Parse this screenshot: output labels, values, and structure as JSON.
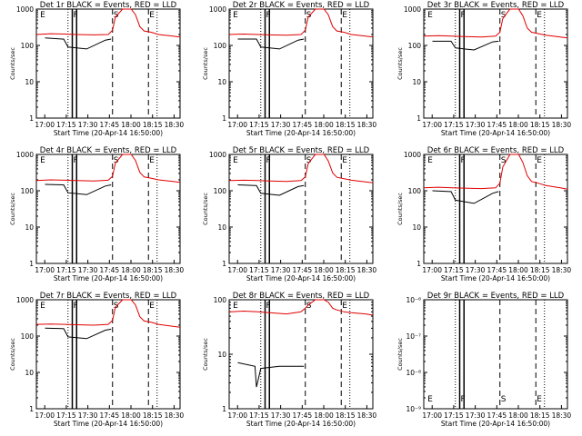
{
  "figure": {
    "xlabel_prefix": "Start Time (20-Apr-14 16:50:00)",
    "ylabel": "Counts/sec",
    "x_ticks": [
      "17:00",
      "17:15",
      "17:30",
      "17:45",
      "18:00",
      "18:15",
      "18:30"
    ],
    "colors": {
      "events": "#000000",
      "lld": "#e00000"
    }
  },
  "chart_data": [
    {
      "type": "line",
      "title": "Det 1r BLACK = Events, RED = LLD",
      "yscale": "log",
      "ylim": [
        1,
        1000
      ],
      "y_ticks": [
        "1",
        "10",
        "100",
        "1000"
      ],
      "flags": [
        "E",
        "F",
        "S",
        "E"
      ],
      "series": [
        {
          "name": "LLD",
          "x": [
            0,
            10,
            20,
            28,
            40,
            50,
            53,
            55,
            60,
            66,
            69,
            72,
            75,
            80,
            85,
            95,
            100
          ],
          "y": [
            200,
            210,
            205,
            200,
            195,
            200,
            260,
            600,
            1000,
            1000,
            700,
            330,
            250,
            230,
            200,
            180,
            170
          ]
        },
        {
          "name": "Events",
          "x": [
            6,
            18,
            19,
            22,
            35,
            48,
            52
          ],
          "y": [
            160,
            150,
            150,
            90,
            80,
            140,
            150
          ]
        }
      ]
    },
    {
      "type": "line",
      "title": "Det 2r BLACK = Events, RED = LLD",
      "yscale": "log",
      "ylim": [
        1,
        1000
      ],
      "y_ticks": [
        "1",
        "10",
        "100",
        "1000"
      ],
      "flags": [
        "E",
        "F",
        "S",
        "E"
      ],
      "series": [
        {
          "name": "LLD",
          "x": [
            0,
            10,
            20,
            28,
            40,
            50,
            53,
            55,
            60,
            66,
            69,
            72,
            75,
            80,
            85,
            95,
            100
          ],
          "y": [
            200,
            205,
            200,
            195,
            190,
            200,
            260,
            600,
            1000,
            1000,
            700,
            330,
            250,
            230,
            200,
            180,
            170
          ]
        },
        {
          "name": "Events",
          "x": [
            6,
            18,
            19,
            22,
            35,
            48,
            52
          ],
          "y": [
            150,
            150,
            150,
            90,
            80,
            140,
            150
          ]
        }
      ]
    },
    {
      "type": "line",
      "title": "Det 3r BLACK = Events, RED = LLD",
      "yscale": "log",
      "ylim": [
        1,
        1000
      ],
      "y_ticks": [
        "1",
        "10",
        "100",
        "1000"
      ],
      "flags": [
        "E",
        "F",
        "S",
        "E"
      ],
      "series": [
        {
          "name": "LLD",
          "x": [
            0,
            10,
            20,
            28,
            40,
            50,
            53,
            55,
            60,
            66,
            69,
            72,
            75,
            80,
            85,
            95,
            100
          ],
          "y": [
            180,
            185,
            180,
            175,
            170,
            180,
            230,
            550,
            1000,
            1000,
            650,
            300,
            230,
            210,
            190,
            170,
            160
          ]
        },
        {
          "name": "Events",
          "x": [
            6,
            18,
            19,
            22,
            35,
            48,
            52
          ],
          "y": [
            130,
            130,
            130,
            85,
            75,
            125,
            130
          ]
        }
      ]
    },
    {
      "type": "line",
      "title": "Det 4r BLACK = Events, RED = LLD",
      "yscale": "log",
      "ylim": [
        1,
        1000
      ],
      "y_ticks": [
        "1",
        "10",
        "100",
        "1000"
      ],
      "flags": [
        "E",
        "F",
        "S",
        "E"
      ],
      "series": [
        {
          "name": "LLD",
          "x": [
            0,
            10,
            20,
            28,
            40,
            50,
            53,
            55,
            60,
            66,
            69,
            72,
            75,
            80,
            85,
            95,
            100
          ],
          "y": [
            190,
            200,
            195,
            190,
            185,
            195,
            250,
            580,
            1000,
            1000,
            680,
            320,
            240,
            220,
            200,
            180,
            170
          ]
        },
        {
          "name": "Events",
          "x": [
            6,
            18,
            19,
            22,
            35,
            48,
            52
          ],
          "y": [
            150,
            145,
            145,
            88,
            78,
            135,
            145
          ]
        }
      ]
    },
    {
      "type": "line",
      "title": "Det 5r BLACK = Events, RED = LLD",
      "yscale": "log",
      "ylim": [
        1,
        1000
      ],
      "y_ticks": [
        "1",
        "10",
        "100",
        "1000"
      ],
      "flags": [
        "E",
        "F",
        "S",
        "E"
      ],
      "series": [
        {
          "name": "LLD",
          "x": [
            0,
            10,
            20,
            28,
            40,
            50,
            53,
            55,
            60,
            66,
            69,
            72,
            75,
            80,
            85,
            95,
            100
          ],
          "y": [
            190,
            195,
            190,
            185,
            180,
            190,
            240,
            560,
            1000,
            1000,
            660,
            310,
            235,
            215,
            195,
            175,
            165
          ]
        },
        {
          "name": "Events",
          "x": [
            6,
            18,
            19,
            22,
            35,
            48,
            52
          ],
          "y": [
            145,
            140,
            140,
            85,
            75,
            130,
            140
          ]
        }
      ]
    },
    {
      "type": "line",
      "title": "Det 6r BLACK = Events, RED = LLD",
      "yscale": "log",
      "ylim": [
        1,
        1000
      ],
      "y_ticks": [
        "1",
        "10",
        "100",
        "1000"
      ],
      "flags": [
        "E",
        "F",
        "S",
        "E"
      ],
      "series": [
        {
          "name": "LLD",
          "x": [
            0,
            10,
            20,
            28,
            40,
            50,
            53,
            55,
            60,
            66,
            69,
            72,
            75,
            80,
            85,
            95,
            100
          ],
          "y": [
            120,
            125,
            120,
            118,
            115,
            120,
            160,
            450,
            1000,
            1000,
            600,
            260,
            180,
            160,
            140,
            120,
            110
          ]
        },
        {
          "name": "Events",
          "x": [
            6,
            18,
            19,
            22,
            35,
            48,
            52
          ],
          "y": [
            100,
            95,
            95,
            55,
            45,
            85,
            95
          ]
        }
      ]
    },
    {
      "type": "line",
      "title": "Det 7r BLACK = Events, RED = LLD",
      "yscale": "log",
      "ylim": [
        1,
        1000
      ],
      "y_ticks": [
        "1",
        "10",
        "100",
        "1000"
      ],
      "flags": [
        "E",
        "F",
        "S",
        "E"
      ],
      "series": [
        {
          "name": "LLD",
          "x": [
            0,
            10,
            20,
            28,
            40,
            50,
            53,
            55,
            60,
            66,
            69,
            72,
            75,
            80,
            85,
            95,
            100
          ],
          "y": [
            210,
            215,
            210,
            205,
            200,
            210,
            270,
            620,
            1000,
            1000,
            720,
            340,
            260,
            240,
            210,
            185,
            175
          ]
        },
        {
          "name": "Events",
          "x": [
            6,
            18,
            19,
            22,
            35,
            48,
            52
          ],
          "y": [
            165,
            160,
            160,
            95,
            85,
            145,
            155
          ]
        }
      ]
    },
    {
      "type": "line",
      "title": "Det 8r BLACK = Events, RED = LLD",
      "yscale": "log",
      "ylim": [
        1,
        100
      ],
      "y_ticks": [
        "1",
        "10",
        "100"
      ],
      "flags": [
        "E",
        "F",
        "S",
        "E"
      ],
      "series": [
        {
          "name": "LLD",
          "x": [
            0,
            10,
            20,
            28,
            40,
            50,
            53,
            55,
            60,
            66,
            69,
            72,
            75,
            80,
            85,
            95,
            100
          ],
          "y": [
            60,
            62,
            60,
            58,
            55,
            60,
            70,
            80,
            100,
            100,
            90,
            70,
            65,
            60,
            58,
            55,
            52
          ]
        },
        {
          "name": "Events",
          "x": [
            6,
            18,
            19,
            22,
            35,
            48,
            52
          ],
          "y": [
            7,
            6,
            2.5,
            5.5,
            6,
            6,
            6
          ]
        }
      ]
    },
    {
      "type": "line",
      "title": "Det 9r BLACK = Events, RED = LLD",
      "yscale": "log",
      "ylim": [
        1e-09,
        1e-06
      ],
      "y_ticks": [
        "10⁻⁹",
        "10⁻⁸",
        "10⁻⁷",
        "10⁻⁶"
      ],
      "flags": [
        "E",
        "F",
        "S",
        "E"
      ],
      "series": []
    }
  ]
}
